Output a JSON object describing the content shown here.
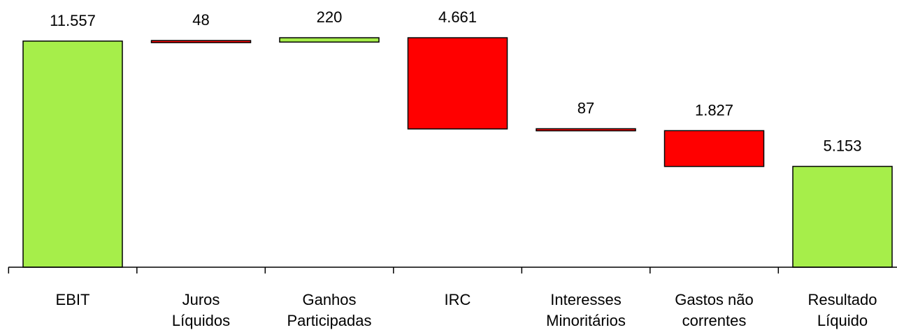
{
  "chart_data": {
    "type": "bar",
    "subtype": "waterfall",
    "categories": [
      [
        "EBIT"
      ],
      [
        "Juros",
        "Líquidos"
      ],
      [
        "Ganhos",
        "Participadas"
      ],
      [
        "IRC"
      ],
      [
        "Interesses",
        "Minoritários"
      ],
      [
        "Gastos não",
        "correntes"
      ],
      [
        "Resultado",
        "Líquido"
      ]
    ],
    "steps": [
      {
        "kind": "total",
        "value": 11557,
        "label": "11.557",
        "start": 0,
        "end": 11557
      },
      {
        "kind": "decrease",
        "value": 48,
        "label": "48",
        "start": 11557,
        "end": 11509
      },
      {
        "kind": "increase",
        "value": 220,
        "label": "220",
        "start": 11509,
        "end": 11729
      },
      {
        "kind": "decrease",
        "value": 4661,
        "label": "4.661",
        "start": 11729,
        "end": 7068
      },
      {
        "kind": "decrease",
        "value": 87,
        "label": "87",
        "start": 7068,
        "end": 6981
      },
      {
        "kind": "decrease",
        "value": 1827,
        "label": "1.827",
        "start": 6981,
        "end": 5153
      },
      {
        "kind": "total",
        "value": 5153,
        "label": "5.153",
        "start": 0,
        "end": 5153
      }
    ],
    "ylim": [
      0,
      11800
    ],
    "grid": false,
    "legend": "none",
    "title": "",
    "xlabel": "",
    "ylabel": "",
    "colors": {
      "total": "#A6EE4A",
      "increase": "#A6EE4A",
      "decrease": "#FF0000",
      "outline": "#000000"
    }
  }
}
